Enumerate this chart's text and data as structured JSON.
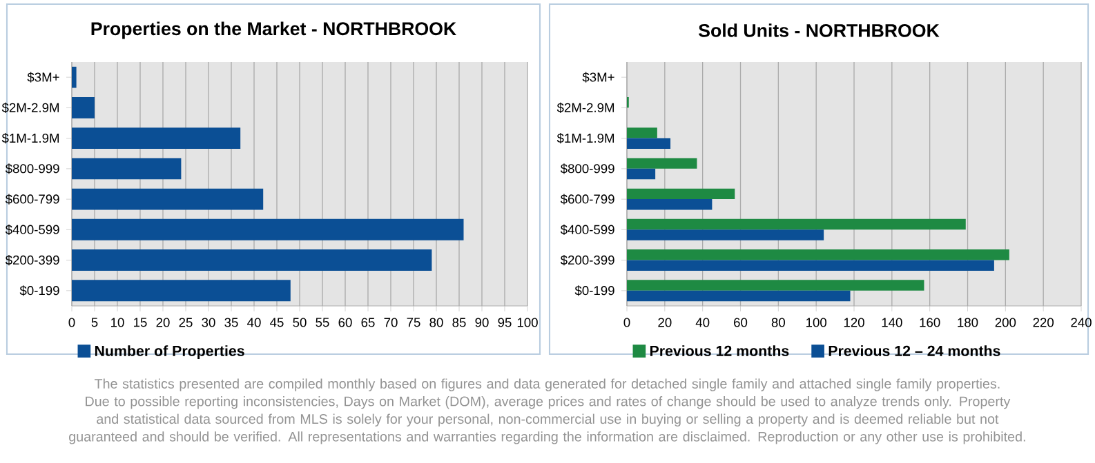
{
  "chart_data": [
    {
      "type": "bar",
      "orientation": "horizontal",
      "title": "Properties on the Market - NORTHBROOK",
      "categories": [
        "$3M+",
        "$2M-2.9M",
        "$1M-1.9M",
        "$800-999",
        "$600-799",
        "$400-599",
        "$200-399",
        "$0-199"
      ],
      "series": [
        {
          "name": "Number of Properties",
          "color": "#0b4f95",
          "values": [
            1,
            5,
            37,
            24,
            42,
            86,
            79,
            48
          ]
        }
      ],
      "xlim": [
        0,
        100
      ],
      "xticks": [
        0,
        5,
        10,
        15,
        20,
        25,
        30,
        35,
        40,
        45,
        50,
        55,
        60,
        65,
        70,
        75,
        80,
        85,
        90,
        95,
        100
      ],
      "grid": "x",
      "legend": "bottom",
      "annotations": [
        "The statistics presented are compiled monthly based on figures and data generated for detached single family and attached single family properties. Due to possible reporting inconsistencies, Days on Market (DOM), average prices and rates of change should be used to analyze trends only. Property and statistical data sourced from MLS is solely for your personal, non-commercial use in buying or selling a property and is deemed reliable but not guaranteed and should be verified. All representations and warranties regarding the information are disclaimed. Reproduction or any other use is prohibited."
      ]
    },
    {
      "type": "bar",
      "orientation": "horizontal",
      "title": "Sold Units - NORTHBROOK",
      "categories": [
        "$3M+",
        "$2M-2.9M",
        "$1M-1.9M",
        "$800-999",
        "$600-799",
        "$400-599",
        "$200-399",
        "$0-199"
      ],
      "series": [
        {
          "name": "Previous 12 months",
          "color": "#1e8a43",
          "values": [
            0,
            1,
            16,
            37,
            57,
            179,
            202,
            157
          ]
        },
        {
          "name": "Previous 12 – 24 months",
          "color": "#0b4f95",
          "values": [
            0,
            0,
            23,
            15,
            45,
            104,
            194,
            118
          ]
        }
      ],
      "xlim": [
        0,
        240
      ],
      "xticks": [
        0,
        20,
        40,
        60,
        80,
        100,
        120,
        140,
        160,
        180,
        200,
        220,
        240
      ],
      "grid": "x",
      "legend": "bottom"
    }
  ]
}
